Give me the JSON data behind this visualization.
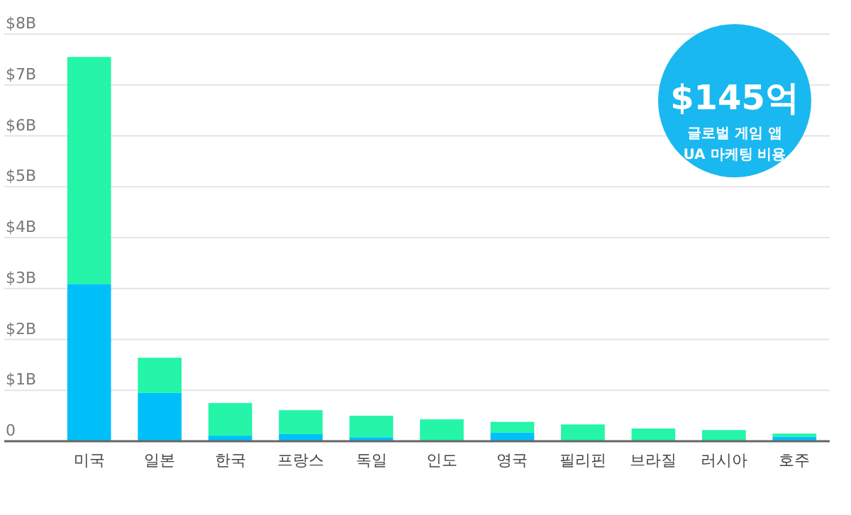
{
  "chart_data": {
    "type": "bar",
    "stacked": true,
    "grid": "y",
    "categories": [
      "미국",
      "일본",
      "한국",
      "프랑스",
      "독일",
      "인도",
      "영국",
      "필리핀",
      "브라질",
      "러시아",
      "호주"
    ],
    "series": [
      {
        "color": "#00c0fa",
        "values": [
          3.09,
          0.95,
          0.11,
          0.14,
          0.08,
          0,
          0.17,
          0,
          0,
          0,
          0.09
        ]
      },
      {
        "color": "#24f5a8",
        "values": [
          4.46,
          0.69,
          0.64,
          0.47,
          0.42,
          0.43,
          0.21,
          0.33,
          0.25,
          0.22,
          0.06
        ]
      }
    ],
    "ylim": [
      0,
      8
    ],
    "yticks": [
      0,
      {
        "value": 1,
        "label": "$1B"
      },
      {
        "value": 2,
        "label": "$2B"
      },
      {
        "value": 3,
        "label": "$3B"
      },
      {
        "value": 4,
        "label": "$4B"
      },
      {
        "value": 5,
        "label": "$5B"
      },
      {
        "value": 6,
        "label": "$6B"
      },
      {
        "value": 7,
        "label": "$7B"
      },
      {
        "value": 8,
        "label": "$8B"
      }
    ],
    "annotations": [
      "$145억",
      "글로벌 게임 앱 UA 마케팅 비용"
    ]
  }
}
